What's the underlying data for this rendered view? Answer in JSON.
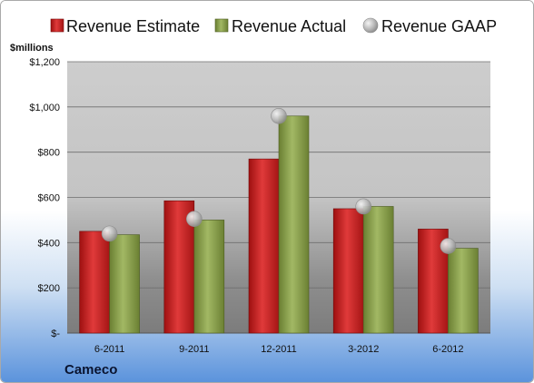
{
  "chart_data": {
    "type": "bar",
    "title": "",
    "unit_label": "$millions",
    "company": "Cameco",
    "categories": [
      "6-2011",
      "9-2011",
      "12-2011",
      "3-2012",
      "6-2012"
    ],
    "series": [
      {
        "name": "Revenue Estimate",
        "kind": "bar",
        "color": "#cc1f1f",
        "values": [
          450,
          585,
          770,
          550,
          460
        ]
      },
      {
        "name": "Revenue Actual",
        "kind": "bar",
        "color": "#8aa04a",
        "values": [
          435,
          500,
          960,
          560,
          375
        ]
      },
      {
        "name": "Revenue GAAP",
        "kind": "marker",
        "color": "#b0b0b0",
        "values": [
          440,
          505,
          960,
          560,
          385
        ]
      }
    ],
    "ylim": [
      0,
      1200
    ],
    "ytick_values": [
      0,
      200,
      400,
      600,
      800,
      1000,
      1200
    ],
    "ytick_labels": [
      "$-",
      "$200",
      "$400",
      "$600",
      "$800",
      "$1,000",
      "$1,200"
    ],
    "grid": true,
    "legend_position": "top"
  }
}
